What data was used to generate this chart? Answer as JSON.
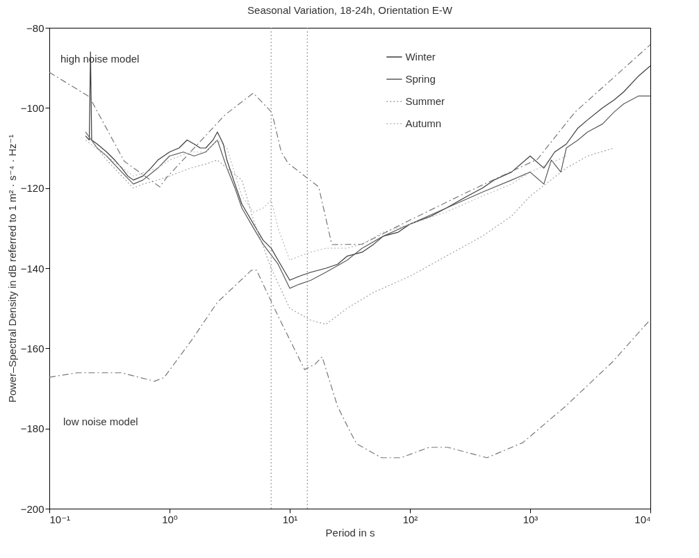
{
  "chart_data": {
    "type": "line",
    "title": "Seasonal Variation, 18-24h, Orientation E-W",
    "xlabel": "Period in s",
    "ylabel": "Power–Spectral Density in dB referred to 1 m² · s⁻⁴ · Hz⁻¹",
    "log": "x",
    "xlim": [
      0.1,
      10000
    ],
    "xticks": [
      {
        "value": 0.1,
        "label": "10⁻¹"
      },
      {
        "value": 1,
        "label": "10⁰"
      },
      {
        "value": 10,
        "label": "10¹"
      },
      {
        "value": 100,
        "label": "10²"
      },
      {
        "value": 1000,
        "label": "10³"
      },
      {
        "value": 10000,
        "label": "10⁴"
      }
    ],
    "ylim": [
      -200,
      -80
    ],
    "yticks": [
      -200,
      -180,
      -160,
      -140,
      -120,
      -100,
      -80
    ],
    "legend": "top right",
    "series": [
      {
        "name": "Winter",
        "color": "#3a3a3a",
        "line_style": "solid",
        "x": [
          0.2,
          0.215,
          0.22,
          0.225,
          0.25,
          0.3,
          0.35,
          0.4,
          0.45,
          0.5,
          0.6,
          0.7,
          0.8,
          1.0,
          1.2,
          1.4,
          1.6,
          1.8,
          2.0,
          2.3,
          2.5,
          2.8,
          3.0,
          3.5,
          4,
          5,
          6,
          7,
          8,
          10,
          12,
          15,
          20,
          25,
          30,
          40,
          50,
          60,
          80,
          100,
          150,
          200,
          300,
          400,
          500,
          700,
          1000,
          1300,
          1600,
          2000,
          2500,
          3000,
          4000,
          5000,
          6000,
          8000,
          10000
        ],
        "values": [
          -107,
          -108,
          -86,
          -108,
          -109,
          -111,
          -113,
          -115,
          -117,
          -118,
          -117,
          -115,
          -113,
          -111,
          -110,
          -108,
          -109,
          -110,
          -110,
          -108,
          -106,
          -109,
          -113,
          -119,
          -124,
          -129,
          -133,
          -135,
          -138,
          -143,
          -142,
          -141,
          -140,
          -139,
          -137,
          -136,
          -134,
          -132,
          -131,
          -129,
          -127,
          -125,
          -122,
          -120,
          -118,
          -116,
          -112,
          -115,
          -111,
          -109,
          -105,
          -103,
          -100,
          -98,
          -96,
          -92,
          -89.5
        ]
      },
      {
        "name": "Spring",
        "color": "#5a5a5a",
        "line_style": "solid",
        "x": [
          0.2,
          0.25,
          0.3,
          0.4,
          0.5,
          0.6,
          0.8,
          1.0,
          1.3,
          1.6,
          2.0,
          2.5,
          3.0,
          3.5,
          4,
          5,
          6,
          8,
          10,
          12,
          15,
          20,
          30,
          40,
          60,
          100,
          200,
          400,
          700,
          1000,
          1300,
          1500,
          1800,
          2000,
          2500,
          3000,
          4000,
          5000,
          6000,
          8000,
          10000
        ],
        "values": [
          -106,
          -110,
          -112,
          -116,
          -119,
          -118,
          -115,
          -112,
          -111,
          -112,
          -111,
          -108,
          -115,
          -120,
          -125,
          -130,
          -134,
          -139,
          -145,
          -144,
          -143,
          -141,
          -138,
          -135,
          -132,
          -129,
          -125,
          -121,
          -118,
          -116,
          -119,
          -113,
          -116,
          -110,
          -108,
          -106,
          -104,
          -101,
          -99,
          -97,
          -97
        ]
      },
      {
        "name": "Summer",
        "color": "#a0a0a0",
        "line_style": "dotted",
        "x": [
          0.2,
          0.25,
          0.3,
          0.4,
          0.5,
          0.6,
          0.8,
          1.0,
          1.5,
          2.0,
          2.5,
          3.0,
          4,
          5,
          7,
          10,
          15,
          20,
          30,
          50,
          100,
          200,
          400,
          700,
          1000,
          2000,
          3000,
          5000
        ],
        "values": [
          -106,
          -110,
          -113,
          -117,
          -120,
          -119,
          -118,
          -117,
          -115,
          -114,
          -113,
          -115,
          -118,
          -128,
          -140,
          -150,
          -153,
          -154,
          -150,
          -146,
          -142,
          -137,
          -132,
          -127,
          -122,
          -115,
          -112,
          -110
        ]
      },
      {
        "name": "Autumn",
        "color": "#b8b8b8",
        "line_style": "dotted",
        "x": [
          0.2,
          0.3,
          0.5,
          0.8,
          1.0,
          1.5,
          2.0,
          2.5,
          3.0,
          4,
          5,
          6,
          7,
          8,
          10,
          12,
          15,
          20,
          30,
          40,
          60,
          100,
          200,
          400,
          700,
          1000,
          2000
        ],
        "values": [
          -108,
          -112,
          -117,
          -115,
          -113,
          -111,
          -111,
          -108,
          -110,
          -122,
          -126,
          -125,
          -123,
          -130,
          -138,
          -137,
          -136,
          -135,
          -135,
          -134,
          -131,
          -129,
          -126,
          -122,
          -119,
          -116,
          -112
        ]
      },
      {
        "color": "#777777",
        "line_style": "dashed",
        "x": [
          0.1,
          0.215,
          0.42,
          0.83,
          0.95,
          2.9,
          4.97,
          7.1,
          8.5,
          9.7,
          17.4,
          22.4,
          40,
          100,
          300,
          1150,
          2350,
          10000
        ],
        "values": [
          -91.1,
          -97.2,
          -113.3,
          -119.7,
          -117.3,
          -101.7,
          -96.3,
          -101.1,
          -111,
          -113.8,
          -119.7,
          -134.1,
          -134,
          -128,
          -121,
          -112.8,
          -101.1,
          -84.2
        ]
      },
      {
        "color": "#777777",
        "line_style": "dashed",
        "x": [
          0.1,
          0.17,
          0.4,
          0.75,
          0.9,
          1.54,
          2.5,
          4.8,
          5.3,
          8.2,
          13.3,
          16.3,
          18.6,
          25,
          32.6,
          36,
          58,
          84,
          144,
          207,
          437,
          870,
          1960,
          4800,
          10000
        ],
        "values": [
          -167.2,
          -166.1,
          -166.1,
          -168.2,
          -167.3,
          -157.8,
          -148.5,
          -140.5,
          -140.5,
          -152.6,
          -165.3,
          -163.9,
          -162.1,
          -174.5,
          -181.4,
          -183.8,
          -187.3,
          -187.3,
          -184.7,
          -184.7,
          -187.3,
          -183.5,
          -174.5,
          -163.5,
          -152.8
        ]
      }
    ],
    "ref_lines": [
      {
        "axis": "x",
        "value": 7,
        "color": "#999999",
        "line_style": "dotted"
      },
      {
        "axis": "x",
        "value": 14,
        "color": "#999999",
        "line_style": "dotted"
      }
    ],
    "annotations": [
      "high noise model",
      "low noise model"
    ]
  }
}
